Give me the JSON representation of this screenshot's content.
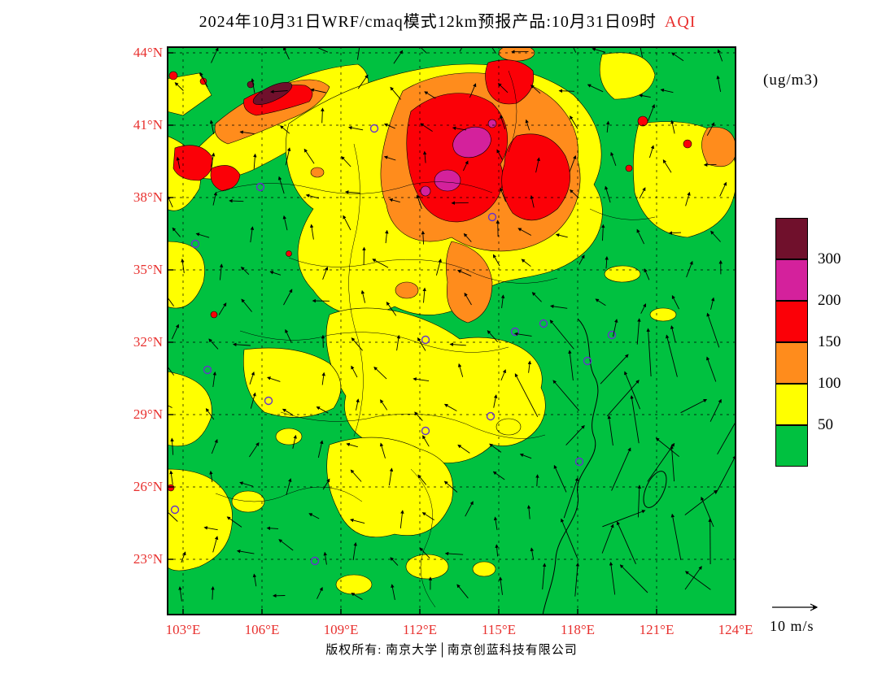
{
  "title": {
    "main": "2024年10月31日WRF/cmaq模式12km预报产品:10月31日09时",
    "highlight": "AQI"
  },
  "units_label": "(ug/m3)",
  "axes": {
    "lat_labels": [
      "44°N",
      "41°N",
      "38°N",
      "35°N",
      "32°N",
      "29°N",
      "26°N",
      "23°N"
    ],
    "lon_labels": [
      "103°E",
      "106°E",
      "109°E",
      "112°E",
      "115°E",
      "118°E",
      "121°E",
      "124°E"
    ]
  },
  "legend": {
    "levels": [
      "300",
      "200",
      "150",
      "100",
      "50"
    ],
    "colors": [
      "#70102c",
      "#d4219c",
      "#fb0007",
      "#ff8c1c",
      "#ffff00",
      "#00c140"
    ]
  },
  "wind_scale_label": "10 m/s",
  "footer": {
    "copyright": "版权所有: 南京大学│南京创蓝科技有限公司"
  },
  "chart_data": {
    "type": "heatmap",
    "title": "2024年10月31日WRF/cmaq模式12km预报产品:10月31日09时 AQI",
    "variable": "AQI",
    "units": "ug/m3",
    "x_axis": {
      "label": "longitude",
      "ticks": [
        "103°E",
        "106°E",
        "109°E",
        "112°E",
        "115°E",
        "118°E",
        "121°E",
        "124°E"
      ],
      "range": [
        "103E",
        "124E"
      ]
    },
    "y_axis": {
      "label": "latitude",
      "ticks": [
        "44°N",
        "41°N",
        "38°N",
        "35°N",
        "32°N",
        "29°N",
        "26°N",
        "23°N"
      ],
      "range": [
        "23N",
        "44N"
      ]
    },
    "colorbar": {
      "boundaries": [
        50,
        100,
        150,
        200,
        300
      ],
      "colors_top_to_bottom": [
        "#70102c",
        "#d4219c",
        "#fb0007",
        "#ff8c1c",
        "#ffff00",
        "#00c140"
      ]
    },
    "overlay": "wind vectors, reference arrow 10 m/s",
    "notable_features": "high AQI (150-300+) plume over North China Plain around 114-117E 37-41N; secondary maxima near 104-107E 41-43N and 103E 38-39N; widespread 50-100 band across central China; below 50 over southeast coast and sea"
  }
}
